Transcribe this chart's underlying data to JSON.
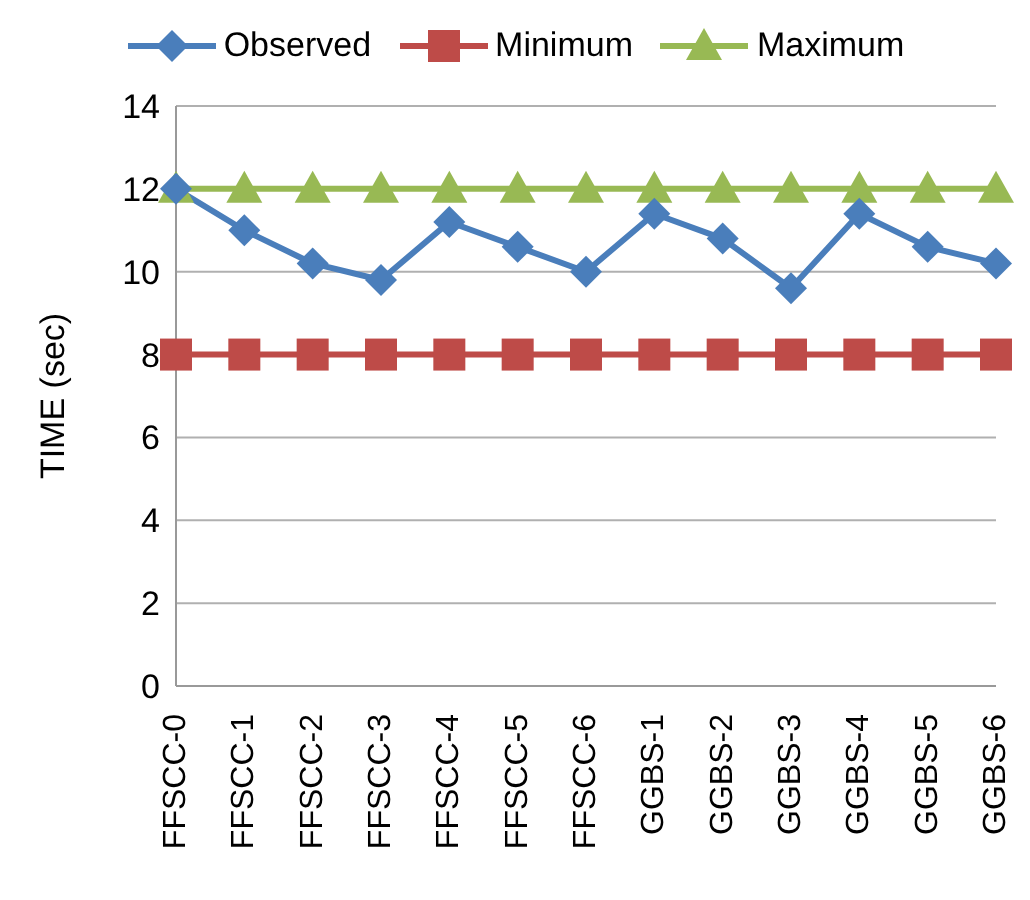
{
  "chart_data": {
    "type": "line",
    "ylabel": "TIME (sec)",
    "categories": [
      "FFSCC-0",
      "FFSCC-1",
      "FFSCC-2",
      "FFSCC-3",
      "FFSCC-4",
      "FFSCC-5",
      "FFSCC-6",
      "GGBS-1",
      "GGBS-2",
      "GGBS-3",
      "GGBS-4",
      "GGBS-5",
      "GGBS-6"
    ],
    "series": [
      {
        "name": "Observed",
        "color": "#4a7ebb",
        "marker": "diamond",
        "values": [
          12,
          11,
          10.2,
          9.8,
          11.2,
          10.6,
          10,
          11.4,
          10.8,
          9.6,
          11.4,
          10.6,
          10.2
        ]
      },
      {
        "name": "Minimum",
        "color": "#be4b48",
        "marker": "square",
        "values": [
          8,
          8,
          8,
          8,
          8,
          8,
          8,
          8,
          8,
          8,
          8,
          8,
          8
        ]
      },
      {
        "name": "Maximum",
        "color": "#98b954",
        "marker": "triangle",
        "values": [
          12,
          12,
          12,
          12,
          12,
          12,
          12,
          12,
          12,
          12,
          12,
          12,
          12
        ]
      }
    ],
    "ylim": [
      0,
      14
    ],
    "yticks": [
      0,
      2,
      4,
      6,
      8,
      10,
      12,
      14
    ],
    "grid": "y",
    "legend": "top"
  }
}
